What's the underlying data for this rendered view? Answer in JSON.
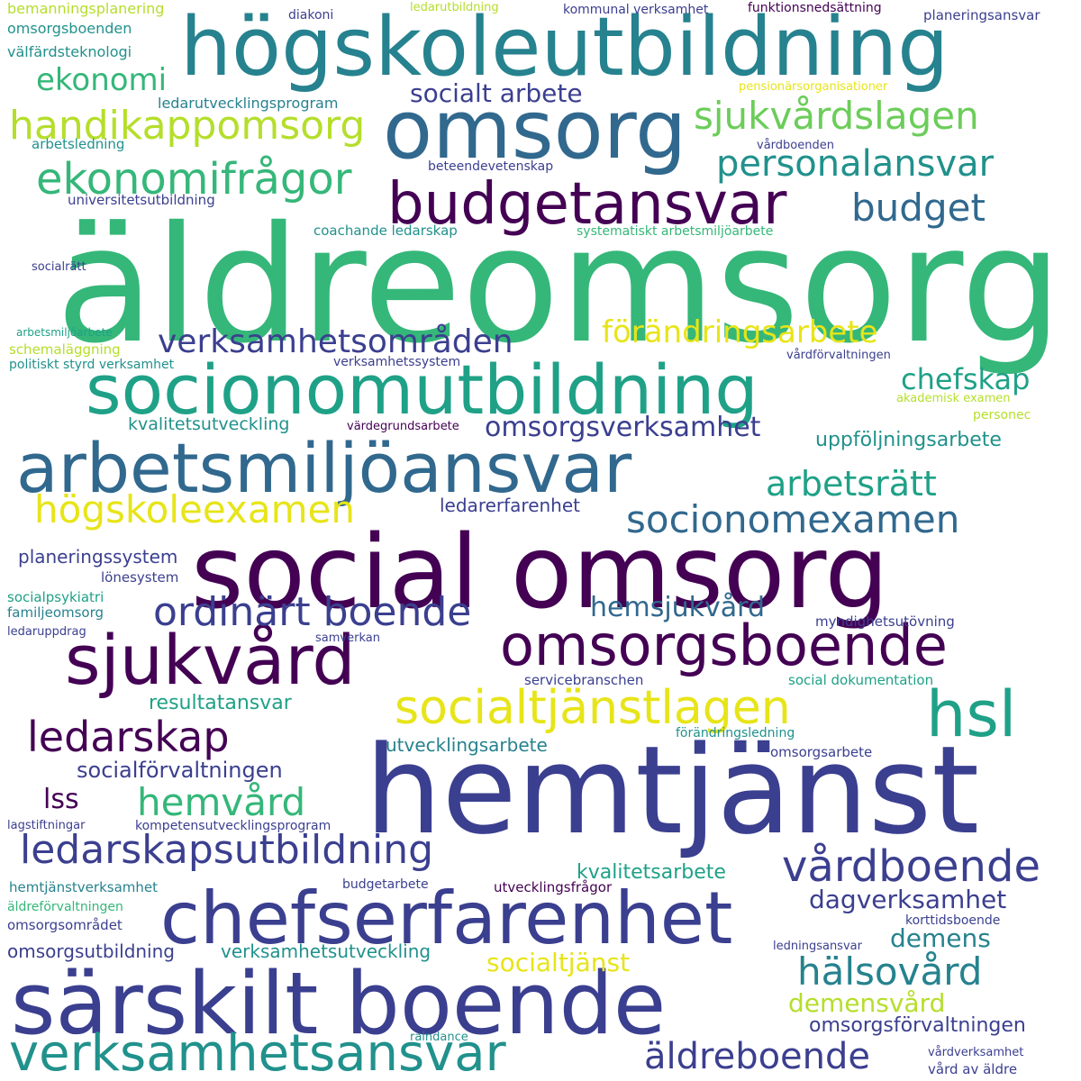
{
  "palette": {
    "dark_purple": "#440154",
    "indigo": "#3b3f8f",
    "blue": "#31688e",
    "teal": "#26828e",
    "cyan_teal": "#21918c",
    "green_teal": "#1fa187",
    "green": "#35b779",
    "light_green": "#6ccd5a",
    "lime": "#b5de2b",
    "yellow": "#e7e419"
  },
  "words": [
    {
      "text": "äldreomsorg",
      "color": "#35b779"
    },
    {
      "text": "högskoleutbildning",
      "color": "#26828e"
    },
    {
      "text": "omsorg",
      "color": "#31688e"
    },
    {
      "text": "social omsorg",
      "color": "#440154"
    },
    {
      "text": "hemtjänst",
      "color": "#3b3f8f"
    },
    {
      "text": "socionomutbildning",
      "color": "#1fa187"
    },
    {
      "text": "arbetsmiljöansvar",
      "color": "#31688e"
    },
    {
      "text": "särskilt boende",
      "color": "#3b3f8f"
    },
    {
      "text": "chefserfarenhet",
      "color": "#3b3f8f"
    },
    {
      "text": "budgetansvar",
      "color": "#440154"
    },
    {
      "text": "sjukvård",
      "color": "#440154"
    },
    {
      "text": "omsorgsboende",
      "color": "#440154"
    },
    {
      "text": "verksamhetsansvar",
      "color": "#21918c"
    },
    {
      "text": "socialtjänstlagen",
      "color": "#e7e419"
    },
    {
      "text": "hsl",
      "color": "#1fa187"
    },
    {
      "text": "handikappomsorg",
      "color": "#b5de2b"
    },
    {
      "text": "ekonomifrågor",
      "color": "#35b779"
    },
    {
      "text": "sjukvårdslagen",
      "color": "#6ccd5a"
    },
    {
      "text": "personalansvar",
      "color": "#21918c"
    },
    {
      "text": "ledarskapsutbildning",
      "color": "#3b3f8f"
    },
    {
      "text": "vårdboende",
      "color": "#3b3f8f"
    },
    {
      "text": "ordinärt boende",
      "color": "#3b3f8f"
    },
    {
      "text": "högskoleexamen",
      "color": "#e7e419"
    },
    {
      "text": "socionomexamen",
      "color": "#31688e"
    },
    {
      "text": "budget",
      "color": "#31688e"
    },
    {
      "text": "verksamhetsområden",
      "color": "#3b3f8f"
    },
    {
      "text": "förändringsarbete",
      "color": "#e7e419"
    },
    {
      "text": "ledarskap",
      "color": "#440154"
    },
    {
      "text": "hemvård",
      "color": "#35b779"
    },
    {
      "text": "äldreboende",
      "color": "#3b3f8f"
    },
    {
      "text": "hälsovård",
      "color": "#26828e"
    },
    {
      "text": "arbetsrätt",
      "color": "#1fa187"
    },
    {
      "text": "chefskap",
      "color": "#1fa187"
    },
    {
      "text": "ekonomi",
      "color": "#35b779"
    },
    {
      "text": "socialt arbete",
      "color": "#3b3f8f"
    },
    {
      "text": "omsorgsverksamhet",
      "color": "#3b3f8f"
    },
    {
      "text": "hemsjukvård",
      "color": "#31688e"
    },
    {
      "text": "dagverksamhet",
      "color": "#3b3f8f"
    },
    {
      "text": "demens",
      "color": "#26828e"
    },
    {
      "text": "demensvård",
      "color": "#b5de2b"
    },
    {
      "text": "socialtjänst",
      "color": "#e7e419"
    },
    {
      "text": "lss",
      "color": "#440154"
    },
    {
      "text": "uppföljningsarbete",
      "color": "#21918c"
    },
    {
      "text": "resultatansvar",
      "color": "#1fa187"
    },
    {
      "text": "socialförvaltningen",
      "color": "#3b3f8f"
    },
    {
      "text": "kvalitetsarbete",
      "color": "#1fa187"
    },
    {
      "text": "omsorgsförvaltningen",
      "color": "#3b3f8f"
    },
    {
      "text": "kvalitetsutveckling",
      "color": "#21918c"
    },
    {
      "text": "utvecklingsarbete",
      "color": "#26828e"
    },
    {
      "text": "verksamhetsutveckling",
      "color": "#21918c"
    },
    {
      "text": "omsorgsutbildning",
      "color": "#3b3f8f"
    },
    {
      "text": "planeringssystem",
      "color": "#3b3f8f"
    },
    {
      "text": "ledarerfarenhet",
      "color": "#3b3f8f"
    },
    {
      "text": "bemanningsplanering",
      "color": "#b5de2b"
    },
    {
      "text": "omsorgsboenden",
      "color": "#21918c"
    },
    {
      "text": "välfärdsteknologi",
      "color": "#21918c"
    },
    {
      "text": "ledarutvecklingsprogram",
      "color": "#26828e"
    },
    {
      "text": "arbetsledning",
      "color": "#21918c"
    },
    {
      "text": "universitetsutbildning",
      "color": "#3b3f8f"
    },
    {
      "text": "beteendevetenskap",
      "color": "#3b3f8f"
    },
    {
      "text": "coachande ledarskap",
      "color": "#21918c"
    },
    {
      "text": "systematiskt arbetsmiljöarbete",
      "color": "#35b779"
    },
    {
      "text": "socialrätt",
      "color": "#3b3f8f"
    },
    {
      "text": "arbetsmiljöarbete",
      "color": "#1fa187"
    },
    {
      "text": "schemaläggning",
      "color": "#b5de2b"
    },
    {
      "text": "politiskt styrd verksamhet",
      "color": "#21918c"
    },
    {
      "text": "verksamhetssystem",
      "color": "#3b3f8f"
    },
    {
      "text": "vårdförvaltningen",
      "color": "#3b3f8f"
    },
    {
      "text": "akademisk examen",
      "color": "#b5de2b"
    },
    {
      "text": "personec",
      "color": "#b5de2b"
    },
    {
      "text": "värdegrundsarbete",
      "color": "#440154"
    },
    {
      "text": "diakoni",
      "color": "#3b3f8f"
    },
    {
      "text": "ledarutbildning",
      "color": "#b5de2b"
    },
    {
      "text": "kommunal verksamhet",
      "color": "#3b3f8f"
    },
    {
      "text": "funktionsnedsättning",
      "color": "#440154"
    },
    {
      "text": "planeringsansvar",
      "color": "#3b3f8f"
    },
    {
      "text": "pensionärsorganisationer",
      "color": "#e7e419"
    },
    {
      "text": "vårdboenden",
      "color": "#3b3f8f"
    },
    {
      "text": "lönesystem",
      "color": "#3b3f8f"
    },
    {
      "text": "socialpsykiatri",
      "color": "#1fa187"
    },
    {
      "text": "familjeomsorg",
      "color": "#26828e"
    },
    {
      "text": "ledaruppdrag",
      "color": "#3b3f8f"
    },
    {
      "text": "samverkan",
      "color": "#3b3f8f"
    },
    {
      "text": "myndighetsutövning",
      "color": "#3b3f8f"
    },
    {
      "text": "servicebranschen",
      "color": "#3b3f8f"
    },
    {
      "text": "social dokumentation",
      "color": "#1fa187"
    },
    {
      "text": "förändringsledning",
      "color": "#21918c"
    },
    {
      "text": "omsorgsarbete",
      "color": "#3b3f8f"
    },
    {
      "text": "lagstiftningar",
      "color": "#3b3f8f"
    },
    {
      "text": "kompetensutvecklingsprogram",
      "color": "#3b3f8f"
    },
    {
      "text": "hemtjänstverksamhet",
      "color": "#26828e"
    },
    {
      "text": "budgetarbete",
      "color": "#3b3f8f"
    },
    {
      "text": "utvecklingsfrågor",
      "color": "#440154"
    },
    {
      "text": "äldreförvaltningen",
      "color": "#35b779"
    },
    {
      "text": "omsorgsområdet",
      "color": "#3b3f8f"
    },
    {
      "text": "korttidsboende",
      "color": "#3b3f8f"
    },
    {
      "text": "ledningsansvar",
      "color": "#3b3f8f"
    },
    {
      "text": "raindance",
      "color": "#21918c"
    },
    {
      "text": "vårdverksamhet",
      "color": "#3b3f8f"
    },
    {
      "text": "vård av äldre",
      "color": "#3b3f8f"
    }
  ]
}
